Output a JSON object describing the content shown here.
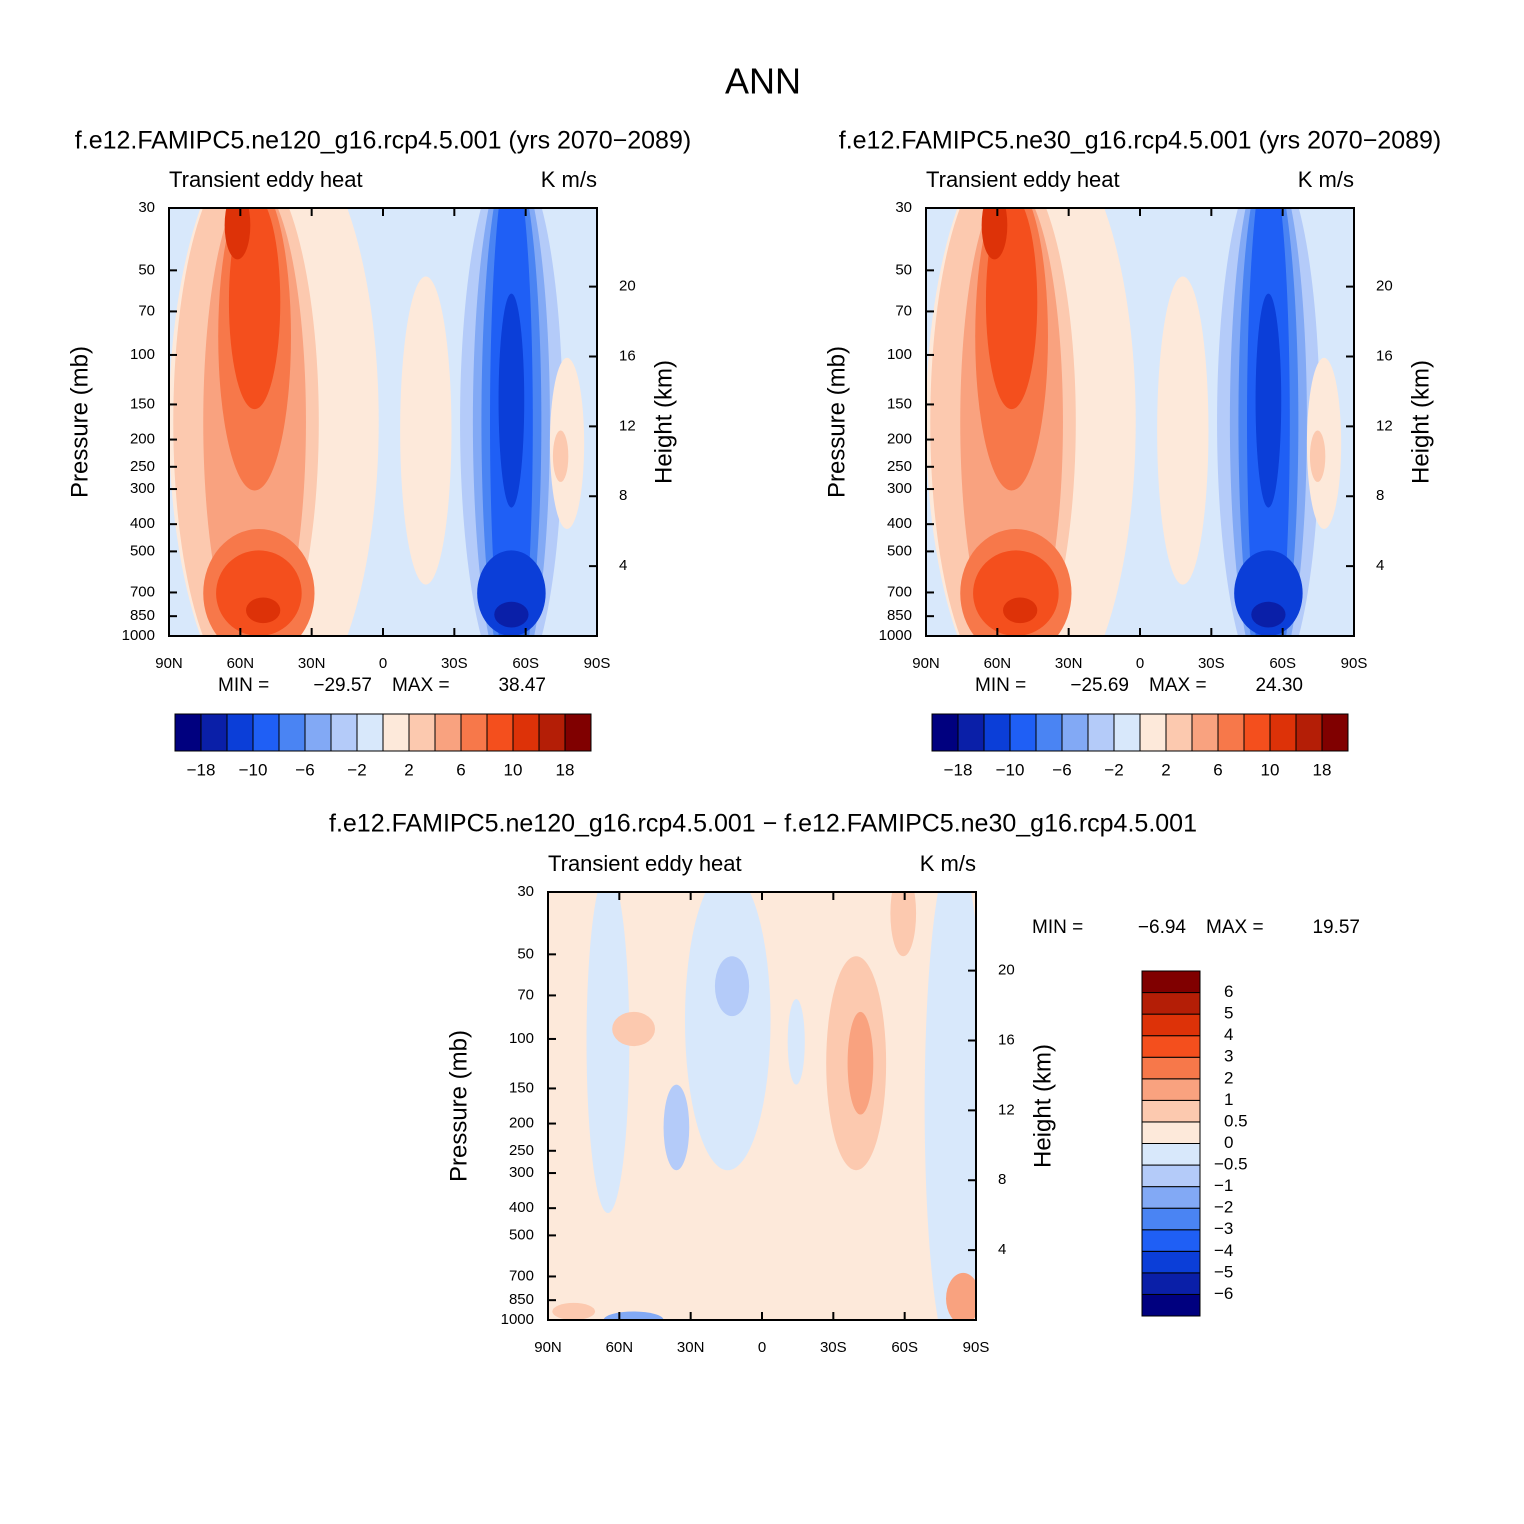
{
  "title": "ANN",
  "chart_data": [
    {
      "type": "contour",
      "title": "f.e12.FAMIPC5.ne120_g16.rcp4.5.001 (yrs 2070−2089)",
      "left_string": "Transient eddy heat",
      "right_string": "K m/s",
      "ylabel": "Pressure (mb)",
      "y2label": "Height (km)",
      "xlim": [
        90,
        -90
      ],
      "xticks": [
        {
          "value": 90,
          "label": "90N"
        },
        {
          "value": 60,
          "label": "60N"
        },
        {
          "value": 30,
          "label": "30N"
        },
        0,
        {
          "value": -30,
          "label": "30S"
        },
        {
          "value": -60,
          "label": "60S"
        },
        {
          "value": -90,
          "label": "90S"
        }
      ],
      "ylim": [
        1000,
        30
      ],
      "ylog": true,
      "yticks": [
        30,
        50,
        70,
        100,
        150,
        200,
        250,
        300,
        400,
        500,
        700,
        850,
        1000
      ],
      "y2lim": [
        0,
        24.5
      ],
      "y2ticks": [
        4,
        8,
        12,
        16,
        20
      ],
      "stats": [
        {
          "name": "MIN =",
          "value": -29.57,
          "label": "−29.57"
        },
        {
          "name": "MAX =",
          "value": 38.47
        }
      ],
      "colorbar": {
        "orientation": "horizontal",
        "colors": [
          "#00007f",
          "#0a1fa8",
          "#0b3ed8",
          "#1f5ff5",
          "#4a84f3",
          "#82a9f5",
          "#b4cbf9",
          "#d8e8fb",
          "#fde9da",
          "#fcc9af",
          "#f9a27f",
          "#f7784a",
          "#f44f1d",
          "#dd3208",
          "#b41e06",
          "#800000"
        ],
        "labels": [
          {
            "value": -18,
            "label": "−18"
          },
          {
            "value": -10,
            "label": "−10"
          },
          {
            "value": -6,
            "label": "−6"
          },
          {
            "value": -2,
            "label": "−2"
          },
          2,
          6,
          10,
          18
        ]
      }
    },
    {
      "type": "contour",
      "title": "f.e12.FAMIPC5.ne30_g16.rcp4.5.001 (yrs 2070−2089)",
      "left_string": "Transient eddy heat",
      "right_string": "K m/s",
      "ylabel": "Pressure (mb)",
      "y2label": "Height (km)",
      "xlim": [
        90,
        -90
      ],
      "xticks": [
        {
          "value": 90,
          "label": "90N"
        },
        {
          "value": 60,
          "label": "60N"
        },
        {
          "value": 30,
          "label": "30N"
        },
        0,
        {
          "value": -30,
          "label": "30S"
        },
        {
          "value": -60,
          "label": "60S"
        },
        {
          "value": -90,
          "label": "90S"
        }
      ],
      "ylim": [
        1000,
        30
      ],
      "ylog": true,
      "yticks": [
        30,
        50,
        70,
        100,
        150,
        200,
        250,
        300,
        400,
        500,
        700,
        850,
        1000
      ],
      "y2lim": [
        0,
        24.5
      ],
      "y2ticks": [
        4,
        8,
        12,
        16,
        20
      ],
      "stats": [
        {
          "name": "MIN =",
          "value": -25.69,
          "label": "−25.69"
        },
        {
          "name": "MAX =",
          "value": 24.3,
          "label": "24.30"
        }
      ],
      "colorbar": {
        "orientation": "horizontal",
        "colors": [
          "#00007f",
          "#0a1fa8",
          "#0b3ed8",
          "#1f5ff5",
          "#4a84f3",
          "#82a9f5",
          "#b4cbf9",
          "#d8e8fb",
          "#fde9da",
          "#fcc9af",
          "#f9a27f",
          "#f7784a",
          "#f44f1d",
          "#dd3208",
          "#b41e06",
          "#800000"
        ],
        "labels": [
          {
            "value": -18,
            "label": "−18"
          },
          {
            "value": -10,
            "label": "−10"
          },
          {
            "value": -6,
            "label": "−6"
          },
          {
            "value": -2,
            "label": "−2"
          },
          2,
          6,
          10,
          18
        ]
      }
    },
    {
      "type": "contour",
      "title": "f.e12.FAMIPC5.ne120_g16.rcp4.5.001 − f.e12.FAMIPC5.ne30_g16.rcp4.5.001",
      "left_string": "Transient eddy heat",
      "right_string": "K m/s",
      "ylabel": "Pressure (mb)",
      "y2label": "Height (km)",
      "xlim": [
        90,
        -90
      ],
      "xticks": [
        {
          "value": 90,
          "label": "90N"
        },
        {
          "value": 60,
          "label": "60N"
        },
        {
          "value": 30,
          "label": "30N"
        },
        0,
        {
          "value": -30,
          "label": "30S"
        },
        {
          "value": -60,
          "label": "60S"
        },
        {
          "value": -90,
          "label": "90S"
        }
      ],
      "ylim": [
        1000,
        30
      ],
      "ylog": true,
      "yticks": [
        30,
        50,
        70,
        100,
        150,
        200,
        250,
        300,
        400,
        500,
        700,
        850,
        1000
      ],
      "y2lim": [
        0,
        24.5
      ],
      "y2ticks": [
        4,
        8,
        12,
        16,
        20
      ],
      "stats": [
        {
          "name": "MIN =",
          "value": -6.94,
          "label": "−6.94"
        },
        {
          "name": "MAX =",
          "value": 19.57
        }
      ],
      "colorbar": {
        "orientation": "vertical",
        "colors": [
          "#00007f",
          "#0a1fa8",
          "#0b3ed8",
          "#1f5ff5",
          "#4a84f3",
          "#82a9f5",
          "#b4cbf9",
          "#d8e8fb",
          "#fde9da",
          "#fcc9af",
          "#f9a27f",
          "#f7784a",
          "#f44f1d",
          "#dd3208",
          "#b41e06",
          "#800000"
        ],
        "labels": [
          {
            "value": -6,
            "label": "−6"
          },
          {
            "value": -5,
            "label": "−5"
          },
          {
            "value": -4,
            "label": "−4"
          },
          {
            "value": -3,
            "label": "−3"
          },
          {
            "value": -2,
            "label": "−2"
          },
          {
            "value": -1,
            "label": "−1"
          },
          {
            "value": -0.5,
            "label": "−0.5"
          },
          0,
          0.5,
          1,
          2,
          3,
          4,
          5,
          6
        ]
      }
    }
  ]
}
